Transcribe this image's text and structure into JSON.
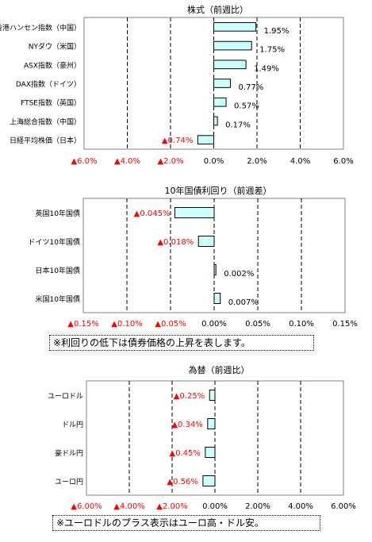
{
  "chart_data": [
    {
      "type": "bar",
      "orientation": "horizontal",
      "title": "株式（前週比）",
      "categories": [
        "香港ハンセン指数（中国）",
        "NYダウ（米国）",
        "ASX指数（豪州）",
        "DAX指数（ドイツ）",
        "FTSE指数（英国）",
        "上海総合指数（中国）",
        "日経平均株価（日本）"
      ],
      "values": [
        1.95,
        1.75,
        1.49,
        0.77,
        0.57,
        0.17,
        -0.74
      ],
      "value_labels": [
        "1.95%",
        "1.75%",
        "1.49%",
        "0.77%",
        "0.57%",
        "0.17%",
        "▲0.74%"
      ],
      "xlim": [
        -6,
        6
      ],
      "xticks": [
        -6,
        -4,
        -2,
        0,
        2,
        4,
        6
      ],
      "xtick_labels": [
        "▲6.0%",
        "▲4.0%",
        "▲2.0%",
        "0.0%",
        "2.0%",
        "4.0%",
        "6.0%"
      ],
      "grid": "vertical dashed"
    },
    {
      "type": "bar",
      "orientation": "horizontal",
      "title": "10年国債利回り（前週差）",
      "categories": [
        "英国10年国債",
        "ドイツ10年国債",
        "日本10年国債",
        "米国10年国債"
      ],
      "values": [
        -0.045,
        -0.018,
        0.002,
        0.007
      ],
      "value_labels": [
        "▲0.045%",
        "▲0.018%",
        "0.002%",
        "0.007%"
      ],
      "xlim": [
        -0.15,
        0.15
      ],
      "xticks": [
        -0.15,
        -0.1,
        -0.05,
        0,
        0.05,
        0.1,
        0.15
      ],
      "xtick_labels": [
        "▲0.15%",
        "▲0.10%",
        "▲0.05%",
        "0.00%",
        "0.05%",
        "0.10%",
        "0.15%"
      ],
      "grid": "vertical dashed",
      "note": "※利回りの低下は債券価格の上昇を表します。"
    },
    {
      "type": "bar",
      "orientation": "horizontal",
      "title": "為替（前週比）",
      "categories": [
        "ユーロドル",
        "ドル円",
        "豪ドル円",
        "ユーロ円"
      ],
      "values": [
        -0.25,
        -0.34,
        -0.45,
        -0.56
      ],
      "value_labels": [
        "▲0.25%",
        "▲0.34%",
        "▲0.45%",
        "▲0.56%"
      ],
      "xlim": [
        -6,
        6
      ],
      "xticks": [
        -6,
        -4,
        -2,
        0,
        2,
        4,
        6
      ],
      "xtick_labels": [
        "▲6.00%",
        "▲4.00%",
        "▲2.00%",
        "0.00%",
        "2.00%",
        "4.00%",
        "6.00%"
      ],
      "grid": "vertical dashed",
      "note": "※ユーロドルのプラス表示はユーロ高・ドル安。"
    }
  ],
  "colors": {
    "bar_fill": "#ccffff",
    "bar_stroke": "#000000",
    "negative_text": "#ff0000",
    "positive_text": "#000000",
    "grid": "#000000"
  }
}
